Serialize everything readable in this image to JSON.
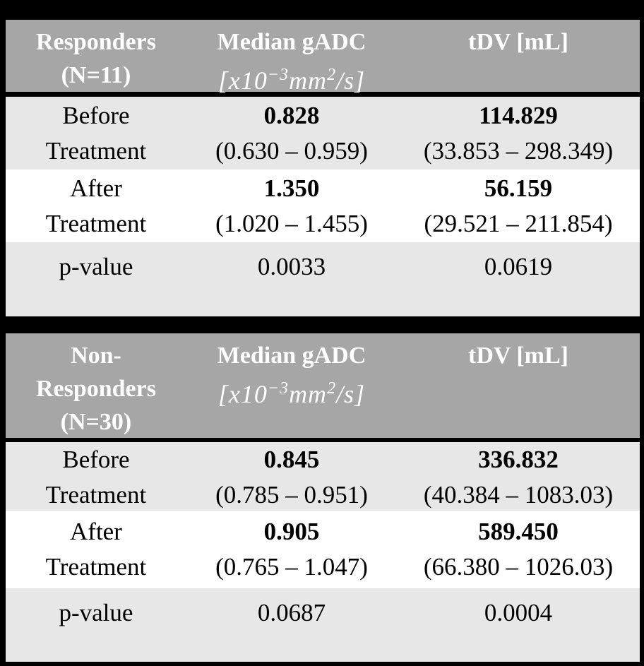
{
  "colors": {
    "frame": "#000000",
    "header_bg": "#a6a6a6",
    "header_text": "#ffffff",
    "stripe_row_bg": "#e7e7e7",
    "white_row_bg": "#ffffff",
    "body_text": "#000000"
  },
  "tables": [
    {
      "group_line1": "Responders",
      "group_line2": "(N=11)",
      "col_gadc_title": "Median gADC",
      "col_gadc_unit_a": "[x10",
      "col_gadc_unit_exp1": "−3",
      "col_gadc_unit_b": "mm",
      "col_gadc_unit_exp2": "2",
      "col_gadc_unit_c": "/s]",
      "col_tdv_title": "tDV [mL]",
      "rows": [
        {
          "label1": "Before",
          "label2": "Treatment",
          "gadc": "0.828",
          "gadc_range": "(0.630 – 0.959)",
          "tdv": "114.829",
          "tdv_range": "(33.853 – 298.349)"
        },
        {
          "label1": "After",
          "label2": "Treatment",
          "gadc": "1.350",
          "gadc_range": "(1.020 – 1.455)",
          "tdv": "56.159",
          "tdv_range": "(29.521 – 211.854)"
        }
      ],
      "p_label": "p-value",
      "p_gadc": "0.0033",
      "p_tdv": "0.0619"
    },
    {
      "group_line1": "Non-",
      "group_line2": "Responders",
      "group_line3": "(N=30)",
      "col_gadc_title": "Median gADC",
      "col_gadc_unit_a": "[x10",
      "col_gadc_unit_exp1": "−3",
      "col_gadc_unit_b": "mm",
      "col_gadc_unit_exp2": "2",
      "col_gadc_unit_c": "/s]",
      "col_tdv_title": "tDV [mL]",
      "rows": [
        {
          "label1": "Before",
          "label2": "Treatment",
          "gadc": "0.845",
          "gadc_range": "(0.785 – 0.951)",
          "tdv": "336.832",
          "tdv_range": "(40.384 – 1083.03)"
        },
        {
          "label1": "After",
          "label2": "Treatment",
          "gadc": "0.905",
          "gadc_range": "(0.765 – 1.047)",
          "tdv": "589.450",
          "tdv_range": "(66.380 – 1026.03)"
        }
      ],
      "p_label": "p-value",
      "p_gadc": "0.0687",
      "p_tdv": "0.0004"
    }
  ],
  "chart_data": [
    {
      "type": "table",
      "title": "Responders (N=11)",
      "columns": [
        "Responders (N=11)",
        "Median gADC [x10⁻³mm²/s]",
        "tDV [mL]"
      ],
      "rows": [
        [
          "Before Treatment",
          "0.828 (0.630 – 0.959)",
          "114.829 (33.853 – 298.349)"
        ],
        [
          "After Treatment",
          "1.350 (1.020 – 1.455)",
          "56.159 (29.521 – 211.854)"
        ],
        [
          "p-value",
          "0.0033",
          "0.0619"
        ]
      ]
    },
    {
      "type": "table",
      "title": "Non-Responders (N=30)",
      "columns": [
        "Non-Responders (N=30)",
        "Median gADC [x10⁻³mm²/s]",
        "tDV [mL]"
      ],
      "rows": [
        [
          "Before Treatment",
          "0.845 (0.785 – 0.951)",
          "336.832 (40.384 – 1083.03)"
        ],
        [
          "After Treatment",
          "0.905 (0.765 – 1.047)",
          "589.450 (66.380 – 1026.03)"
        ],
        [
          "p-value",
          "0.0687",
          "0.0004"
        ]
      ]
    }
  ]
}
